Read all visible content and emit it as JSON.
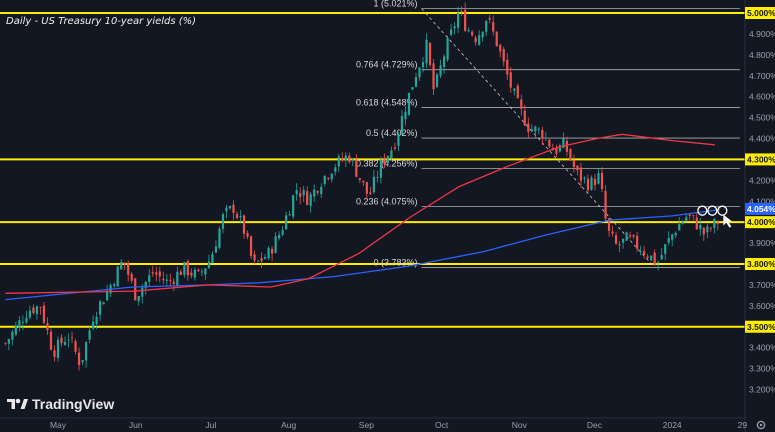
{
  "chart_data": {
    "type": "candlestick",
    "title": "Daily - US Treasury 10-year yields (%)",
    "y_range": [
      3.15,
      5.1
    ],
    "y_ticks": [
      "5.000%",
      "4.900%",
      "4.800%",
      "4.700%",
      "4.600%",
      "4.500%",
      "4.400%",
      "4.300%",
      "4.200%",
      "4.100%",
      "4.000%",
      "3.900%",
      "3.800%",
      "3.700%",
      "3.600%",
      "3.500%",
      "3.400%",
      "3.300%",
      "3.200%"
    ],
    "x_ticks": [
      {
        "label": "May",
        "day": 0
      },
      {
        "label": "Jun",
        "day": 31
      },
      {
        "label": "Jul",
        "day": 61
      },
      {
        "label": "Aug",
        "day": 92
      },
      {
        "label": "Sep",
        "day": 123
      },
      {
        "label": "Oct",
        "day": 153
      },
      {
        "label": "Nov",
        "day": 184
      },
      {
        "label": "Dec",
        "day": 214
      },
      {
        "label": "2024",
        "day": 245
      },
      {
        "label": "29",
        "day": 273
      }
    ],
    "support_resistance_levels": [
      {
        "value": 5.0,
        "label": "5.000%"
      },
      {
        "value": 4.3,
        "label": "4.300%"
      },
      {
        "value": 4.0,
        "label": "4.000%"
      },
      {
        "value": 3.8,
        "label": "3.800%"
      },
      {
        "value": 3.5,
        "label": "3.500%"
      }
    ],
    "current_price": {
      "value": 4.054,
      "label": "4.054%"
    },
    "fibonacci": {
      "start_day": 145,
      "end_day": 272,
      "levels": [
        {
          "ratio": 1,
          "value": 5.021,
          "label": "1 (5.021%)"
        },
        {
          "ratio": 0.764,
          "value": 4.729,
          "label": "0.764 (4.729%)"
        },
        {
          "ratio": 0.618,
          "value": 4.548,
          "label": "0.618 (4.548%)"
        },
        {
          "ratio": 0.5,
          "value": 4.402,
          "label": "0.5 (4.402%)"
        },
        {
          "ratio": 0.382,
          "value": 4.256,
          "label": "0.382 (4.256%)"
        },
        {
          "ratio": 0.236,
          "value": 4.075,
          "label": "0.236 (4.075%)"
        },
        {
          "ratio": 0,
          "value": 3.783,
          "label": "0 (3.783%)"
        }
      ]
    },
    "trend_line": {
      "from": {
        "day": 145,
        "value": 5.021
      },
      "to": {
        "day": 238,
        "value": 3.783
      }
    },
    "price_path": [
      {
        "day": -21,
        "value": 3.42
      },
      {
        "day": -12,
        "value": 3.58
      },
      {
        "day": -7,
        "value": 3.6
      },
      {
        "day": -2,
        "value": 3.38
      },
      {
        "day": 4,
        "value": 3.46
      },
      {
        "day": 9,
        "value": 3.32
      },
      {
        "day": 14,
        "value": 3.55
      },
      {
        "day": 21,
        "value": 3.7
      },
      {
        "day": 26,
        "value": 3.82
      },
      {
        "day": 31,
        "value": 3.65
      },
      {
        "day": 38,
        "value": 3.76
      },
      {
        "day": 44,
        "value": 3.71
      },
      {
        "day": 50,
        "value": 3.78
      },
      {
        "day": 56,
        "value": 3.74
      },
      {
        "day": 61,
        "value": 3.83
      },
      {
        "day": 66,
        "value": 4.03
      },
      {
        "day": 70,
        "value": 4.07
      },
      {
        "day": 74,
        "value": 3.97
      },
      {
        "day": 78,
        "value": 3.79
      },
      {
        "day": 84,
        "value": 3.85
      },
      {
        "day": 89,
        "value": 3.96
      },
      {
        "day": 95,
        "value": 4.16
      },
      {
        "day": 100,
        "value": 4.11
      },
      {
        "day": 105,
        "value": 4.2
      },
      {
        "day": 110,
        "value": 4.27
      },
      {
        "day": 116,
        "value": 4.32
      },
      {
        "day": 120,
        "value": 4.22
      },
      {
        "day": 124,
        "value": 4.12
      },
      {
        "day": 129,
        "value": 4.28
      },
      {
        "day": 134,
        "value": 4.37
      },
      {
        "day": 139,
        "value": 4.57
      },
      {
        "day": 143,
        "value": 4.72
      },
      {
        "day": 147,
        "value": 4.84
      },
      {
        "day": 150,
        "value": 4.62
      },
      {
        "day": 154,
        "value": 4.8
      },
      {
        "day": 160,
        "value": 5.01
      },
      {
        "day": 163,
        "value": 4.93
      },
      {
        "day": 167,
        "value": 4.88
      },
      {
        "day": 171,
        "value": 4.98
      },
      {
        "day": 175,
        "value": 4.86
      },
      {
        "day": 180,
        "value": 4.67
      },
      {
        "day": 184,
        "value": 4.54
      },
      {
        "day": 188,
        "value": 4.45
      },
      {
        "day": 193,
        "value": 4.43
      },
      {
        "day": 198,
        "value": 4.34
      },
      {
        "day": 202,
        "value": 4.37
      },
      {
        "day": 207,
        "value": 4.23
      },
      {
        "day": 212,
        "value": 4.18
      },
      {
        "day": 216,
        "value": 4.22
      },
      {
        "day": 219,
        "value": 3.96
      },
      {
        "day": 223,
        "value": 3.88
      },
      {
        "day": 227,
        "value": 3.92
      },
      {
        "day": 232,
        "value": 3.88
      },
      {
        "day": 236,
        "value": 3.84
      },
      {
        "day": 239,
        "value": 3.8
      },
      {
        "day": 243,
        "value": 3.9
      },
      {
        "day": 247,
        "value": 3.98
      },
      {
        "day": 251,
        "value": 4.03
      },
      {
        "day": 255,
        "value": 3.99
      },
      {
        "day": 258,
        "value": 3.94
      },
      {
        "day": 261,
        "value": 3.98
      },
      {
        "day": 264,
        "value": 4.01
      }
    ],
    "moving_averages": [
      {
        "color": "#2962ff",
        "points": [
          {
            "day": -21,
            "value": 3.63
          },
          {
            "day": 30,
            "value": 3.69
          },
          {
            "day": 60,
            "value": 3.7
          },
          {
            "day": 80,
            "value": 3.71
          },
          {
            "day": 110,
            "value": 3.74
          },
          {
            "day": 140,
            "value": 3.79
          },
          {
            "day": 170,
            "value": 3.86
          },
          {
            "day": 195,
            "value": 3.94
          },
          {
            "day": 220,
            "value": 4.01
          },
          {
            "day": 245,
            "value": 4.03
          },
          {
            "day": 264,
            "value": 4.06
          }
        ]
      },
      {
        "color": "#f23645",
        "points": [
          {
            "day": -21,
            "value": 3.66
          },
          {
            "day": 30,
            "value": 3.67
          },
          {
            "day": 60,
            "value": 3.7
          },
          {
            "day": 85,
            "value": 3.69
          },
          {
            "day": 100,
            "value": 3.73
          },
          {
            "day": 120,
            "value": 3.85
          },
          {
            "day": 140,
            "value": 4.02
          },
          {
            "day": 160,
            "value": 4.17
          },
          {
            "day": 180,
            "value": 4.27
          },
          {
            "day": 200,
            "value": 4.36
          },
          {
            "day": 215,
            "value": 4.4
          },
          {
            "day": 225,
            "value": 4.42
          },
          {
            "day": 245,
            "value": 4.39
          },
          {
            "day": 262,
            "value": 4.37
          }
        ]
      }
    ],
    "markers": [
      {
        "day": 257,
        "value": 4.055
      },
      {
        "day": 261,
        "value": 4.055
      },
      {
        "day": 265,
        "value": 4.055
      }
    ],
    "grid": false,
    "colors": {
      "background": "#131722",
      "up": "#26a69a",
      "down": "#ef5350",
      "level_line": "#ffee00",
      "current_tag": "#2962ff"
    }
  },
  "branding": {
    "logo_text": "TradingView",
    "logo_icon": "tradingview-logo-icon"
  },
  "controls": {
    "settings_icon": "gear-icon"
  }
}
